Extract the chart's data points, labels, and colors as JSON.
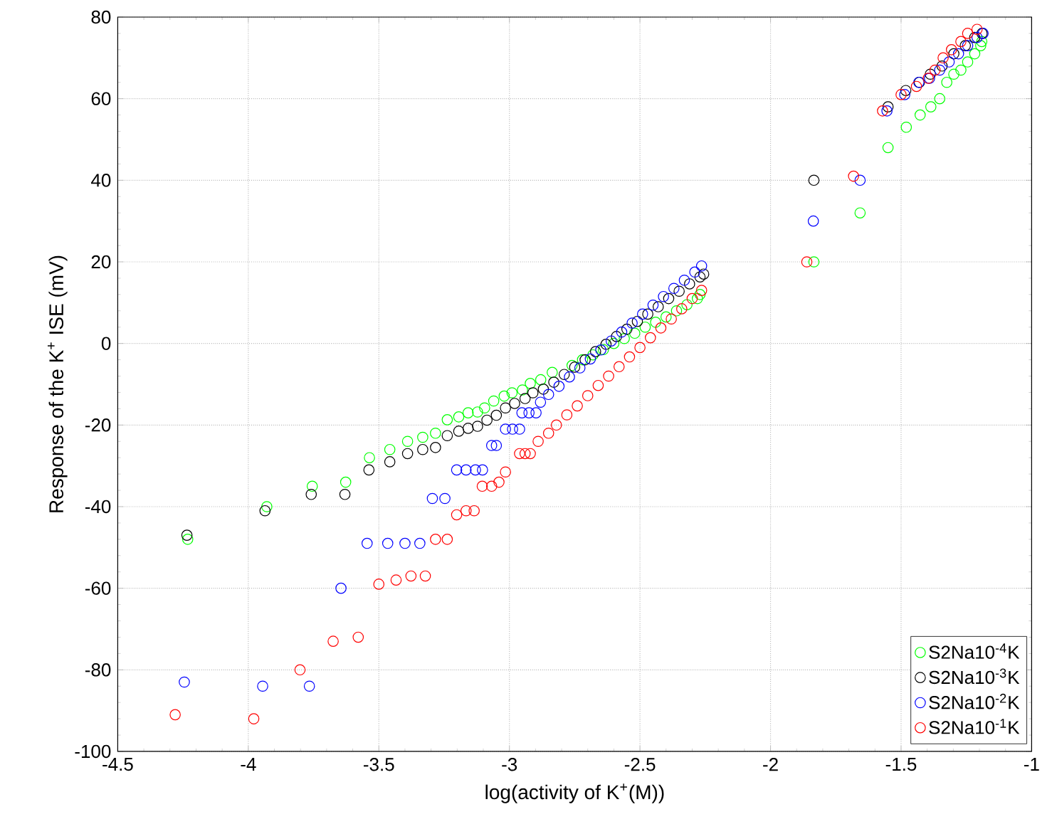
{
  "chart_data": {
    "type": "scatter",
    "xlabel": "log(activity of K$^{+}$(M))",
    "ylabel": "Response of the K$^{+}$ ISE (mV)",
    "xlim": [
      -4.5,
      -1
    ],
    "ylim": [
      -100,
      80
    ],
    "xticks": [
      -4.5,
      -4,
      -3.5,
      -3,
      -2.5,
      -2,
      -1.5,
      -1
    ],
    "yticks": [
      -100,
      -80,
      -60,
      -40,
      -20,
      0,
      20,
      40,
      60,
      80
    ],
    "grid": true,
    "legend": "bottom right",
    "marker": "circle",
    "series": [
      {
        "name": "S2Na10$^{-4}$K",
        "color": "#00ff00",
        "x": [
          -4.232,
          -3.929,
          -3.755,
          -3.627,
          -3.536,
          -3.458,
          -3.39,
          -3.332,
          -3.283,
          -3.238,
          -3.194,
          -3.158,
          -3.122,
          -3.095,
          -3.06,
          -3.02,
          -2.99,
          -2.95,
          -2.92,
          -2.88,
          -2.836,
          -2.76,
          -2.72,
          -2.68,
          -2.64,
          -2.6,
          -2.56,
          -2.52,
          -2.48,
          -2.44,
          -2.4,
          -2.36,
          -2.32,
          -2.28,
          -2.27,
          -1.834,
          -1.657,
          -1.55,
          -1.48,
          -1.427,
          -1.386,
          -1.352,
          -1.325,
          -1.298,
          -1.271,
          -1.245,
          -1.218,
          -1.195,
          -1.191
        ],
        "values": [
          -48,
          -40,
          -35,
          -34,
          -28,
          -26,
          -24,
          -23,
          -22,
          -18.7,
          -18,
          -17,
          -16.8,
          -15.8,
          -14.1,
          -12.9,
          -12.1,
          -11.4,
          -9.8,
          -8.9,
          -7.1,
          -5.4,
          -4,
          -2.8,
          -1.5,
          0,
          1.2,
          2.5,
          4,
          5.2,
          6.5,
          8,
          9.5,
          11,
          12,
          20,
          32,
          48,
          53,
          56,
          58,
          60,
          64,
          66,
          67,
          69,
          71,
          73,
          74
        ]
      },
      {
        "name": "S2Na10$^{-3}$K",
        "color": "#000000",
        "x": [
          -4.235,
          -3.936,
          -3.759,
          -3.63,
          -3.538,
          -3.458,
          -3.39,
          -3.332,
          -3.283,
          -3.238,
          -3.194,
          -3.158,
          -3.122,
          -3.086,
          -3.05,
          -3.015,
          -2.98,
          -2.94,
          -2.91,
          -2.87,
          -2.83,
          -2.79,
          -2.75,
          -2.71,
          -2.67,
          -2.63,
          -2.59,
          -2.55,
          -2.51,
          -2.47,
          -2.43,
          -2.39,
          -2.35,
          -2.31,
          -2.27,
          -2.256,
          -1.834,
          -1.55,
          -1.482,
          -1.43,
          -1.388,
          -1.343,
          -1.298,
          -1.254,
          -1.218,
          -1.19
        ],
        "values": [
          -47,
          -41,
          -37,
          -37,
          -31,
          -29,
          -27,
          -26,
          -25.5,
          -22.6,
          -21.5,
          -20.8,
          -20.3,
          -18.8,
          -17.6,
          -15.8,
          -14.7,
          -13.5,
          -12.1,
          -11.2,
          -9.5,
          -7.6,
          -5.8,
          -4,
          -2,
          -0.2,
          1.7,
          3.5,
          5.4,
          7.2,
          9,
          11,
          12.8,
          14.6,
          16.3,
          17,
          40,
          58,
          62,
          64,
          66,
          68,
          71,
          73,
          75,
          76
        ]
      },
      {
        "name": "S2Na10$^{-2}$K",
        "color": "#0000ff",
        "x": [
          -4.245,
          -3.945,
          -3.766,
          -3.645,
          -3.545,
          -3.466,
          -3.4,
          -3.343,
          -3.295,
          -3.247,
          -3.202,
          -3.166,
          -3.13,
          -3.103,
          -3.068,
          -3.05,
          -3.015,
          -2.988,
          -2.961,
          -2.952,
          -2.925,
          -2.898,
          -2.881,
          -2.85,
          -2.81,
          -2.77,
          -2.73,
          -2.69,
          -2.65,
          -2.61,
          -2.57,
          -2.53,
          -2.49,
          -2.45,
          -2.41,
          -2.37,
          -2.33,
          -2.29,
          -2.264,
          -1.836,
          -1.657,
          -1.554,
          -1.486,
          -1.432,
          -1.391,
          -1.352,
          -1.316,
          -1.28,
          -1.245,
          -1.209,
          -1.186
        ],
        "values": [
          -83,
          -84,
          -84,
          -60,
          -49,
          -49,
          -49,
          -49,
          -38,
          -38,
          -31,
          -31,
          -31,
          -31,
          -25,
          -25,
          -21,
          -21,
          -21,
          -17,
          -17,
          -17,
          -14.4,
          -12.5,
          -10.5,
          -8.2,
          -6,
          -3.8,
          -1.6,
          0.6,
          2.8,
          5,
          7.2,
          9.4,
          11.5,
          13.5,
          15.5,
          17.5,
          19,
          30,
          40,
          57,
          61,
          64,
          65,
          67,
          69,
          71,
          73,
          75,
          76
        ]
      },
      {
        "name": "S2Na10$^{-1}$K",
        "color": "#ff0000",
        "x": [
          -4.28,
          -3.979,
          -3.802,
          -3.675,
          -3.579,
          -3.5,
          -3.434,
          -3.377,
          -3.322,
          -3.283,
          -3.238,
          -3.202,
          -3.166,
          -3.135,
          -3.104,
          -3.068,
          -3.04,
          -3.015,
          -2.961,
          -2.94,
          -2.92,
          -2.89,
          -2.85,
          -2.82,
          -2.78,
          -2.74,
          -2.7,
          -2.66,
          -2.62,
          -2.58,
          -2.54,
          -2.5,
          -2.46,
          -2.42,
          -2.38,
          -2.34,
          -2.3,
          -2.264,
          -1.861,
          -1.682,
          -1.571,
          -1.5,
          -1.441,
          -1.396,
          -1.37,
          -1.339,
          -1.307,
          -1.271,
          -1.245,
          -1.209
        ],
        "values": [
          -91,
          -92,
          -80,
          -73,
          -72,
          -59,
          -58,
          -57,
          -57,
          -48,
          -48,
          -42,
          -41,
          -41,
          -35,
          -35,
          -34,
          -31.5,
          -27,
          -27,
          -27,
          -24,
          -22,
          -20,
          -17.5,
          -15.3,
          -12.8,
          -10.3,
          -8,
          -5.7,
          -3.3,
          -1,
          1.4,
          3.8,
          6,
          8.5,
          11,
          13,
          20,
          41,
          57,
          61,
          63,
          65,
          67,
          70,
          72,
          74,
          76,
          77
        ]
      }
    ]
  }
}
